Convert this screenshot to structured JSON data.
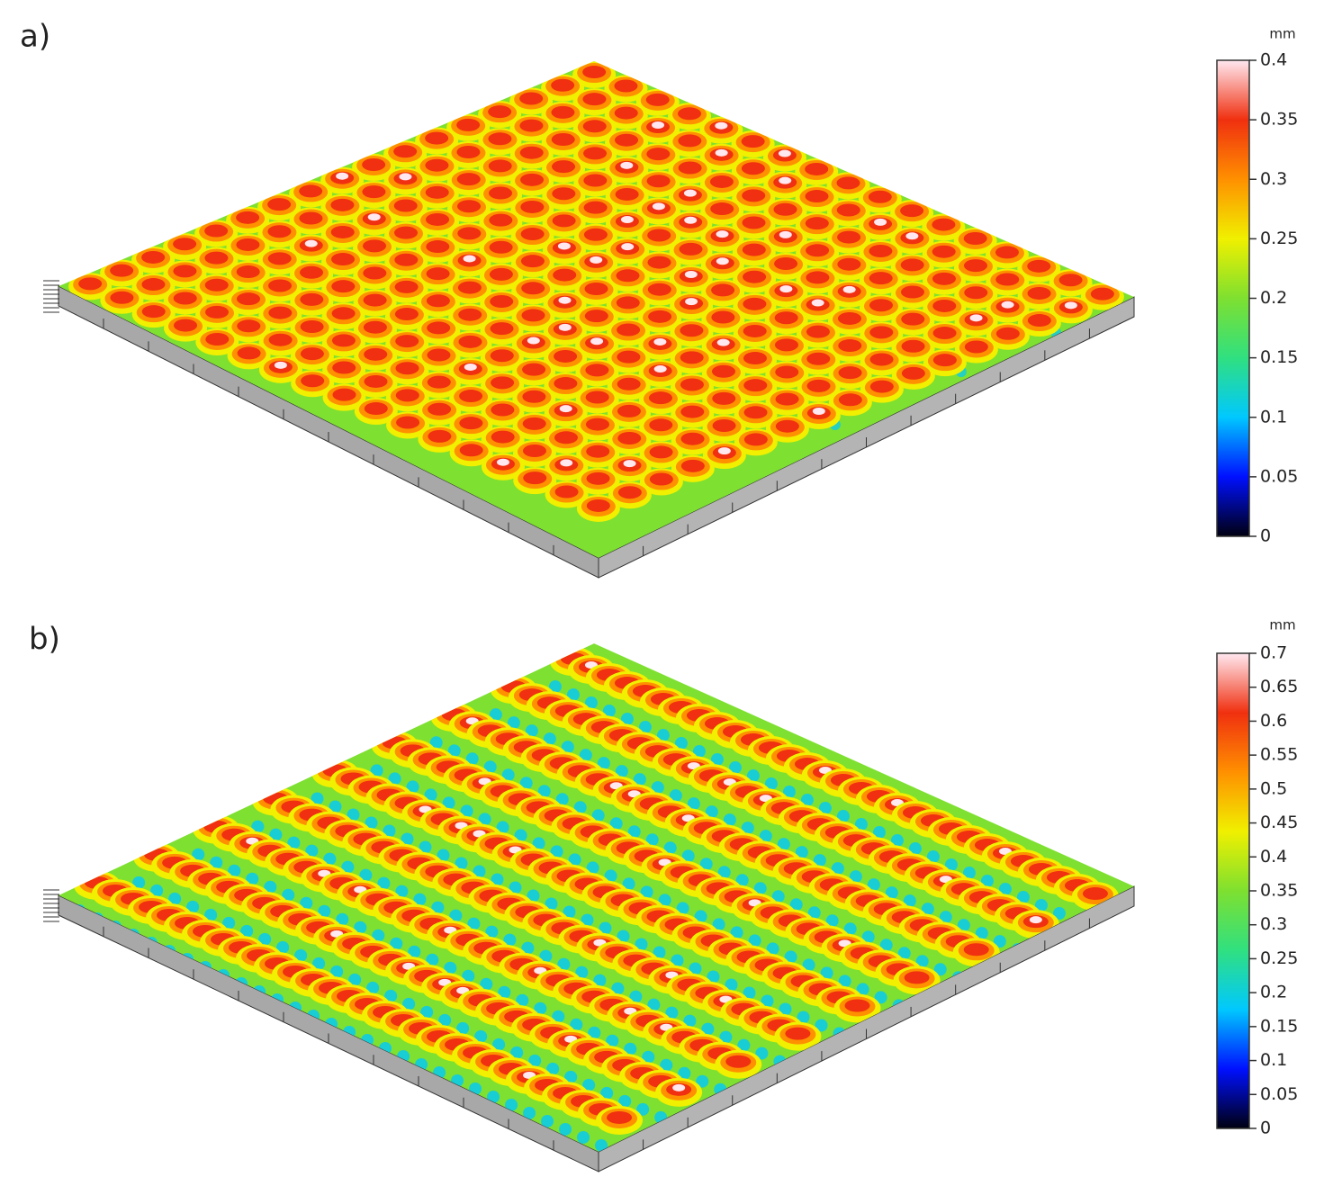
{
  "chart_data": [
    {
      "type": "surface",
      "panel_label": "a)",
      "colorbar_label": "mm",
      "zlim": [
        0,
        0.4
      ],
      "zticks": [
        0,
        0.05,
        0.1,
        0.15,
        0.2,
        0.25,
        0.3,
        0.35,
        0.4
      ],
      "colormap": [
        "#000010",
        "#0010ff",
        "#00c8ff",
        "#30e080",
        "#7ee030",
        "#f0f000",
        "#ff9000",
        "#f03010",
        "#ffe8f0"
      ]
    },
    {
      "type": "surface",
      "panel_label": "b)",
      "colorbar_label": "mm",
      "zlim": [
        0,
        0.7
      ],
      "zticks": [
        0,
        0.05,
        0.1,
        0.15,
        0.2,
        0.25,
        0.3,
        0.35,
        0.4,
        0.45,
        0.5,
        0.55,
        0.6,
        0.65,
        0.7
      ],
      "colormap": [
        "#000010",
        "#0010ff",
        "#00c8ff",
        "#30e080",
        "#7ee030",
        "#f0f000",
        "#ff9000",
        "#f03010",
        "#ffe8f0"
      ]
    }
  ]
}
